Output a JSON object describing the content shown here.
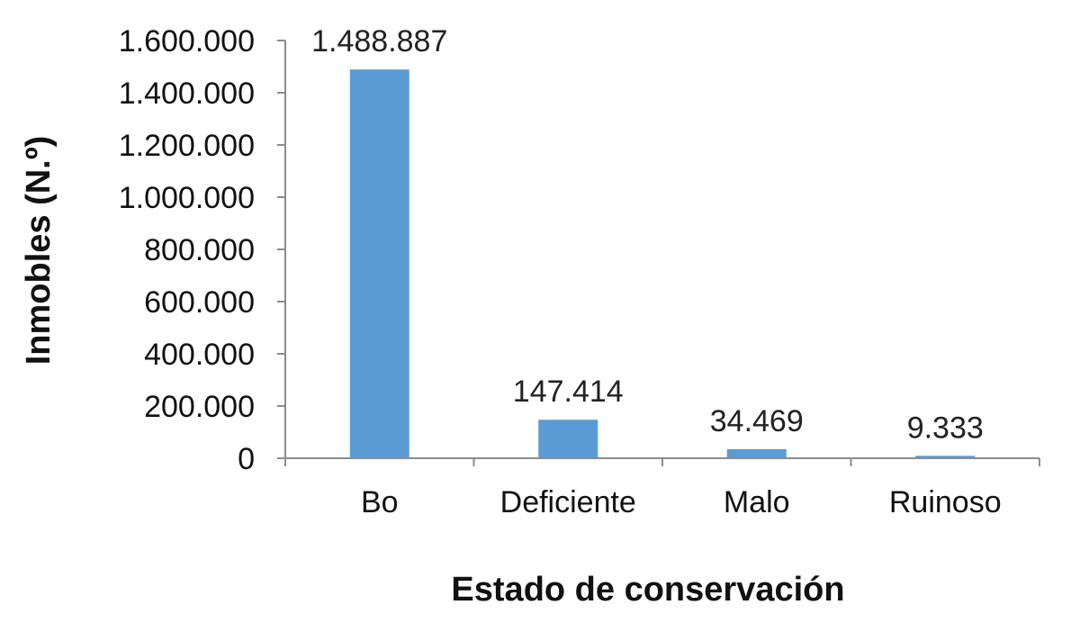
{
  "chart_data": {
    "type": "bar",
    "categories": [
      "Bo",
      "Deficiente",
      "Malo",
      "Ruinoso"
    ],
    "values": [
      1488887,
      147414,
      34469,
      9333
    ],
    "data_labels": [
      "1.488.887",
      "147.414",
      "34.469",
      "9.333"
    ],
    "xlabel": "Estado de conservación",
    "ylabel": "Inmobles (N.º)",
    "ylim": [
      0,
      1600000
    ],
    "yticks": [
      0,
      200000,
      400000,
      600000,
      800000,
      1000000,
      1200000,
      1400000,
      1600000
    ],
    "ytick_labels": [
      "0",
      "200.000",
      "400.000",
      "600.000",
      "800.000",
      "1.000.000",
      "1.200.000",
      "1.400.000",
      "1.600.000"
    ],
    "grid": false,
    "legend": "none",
    "bar_color": "#5b9bd5"
  }
}
